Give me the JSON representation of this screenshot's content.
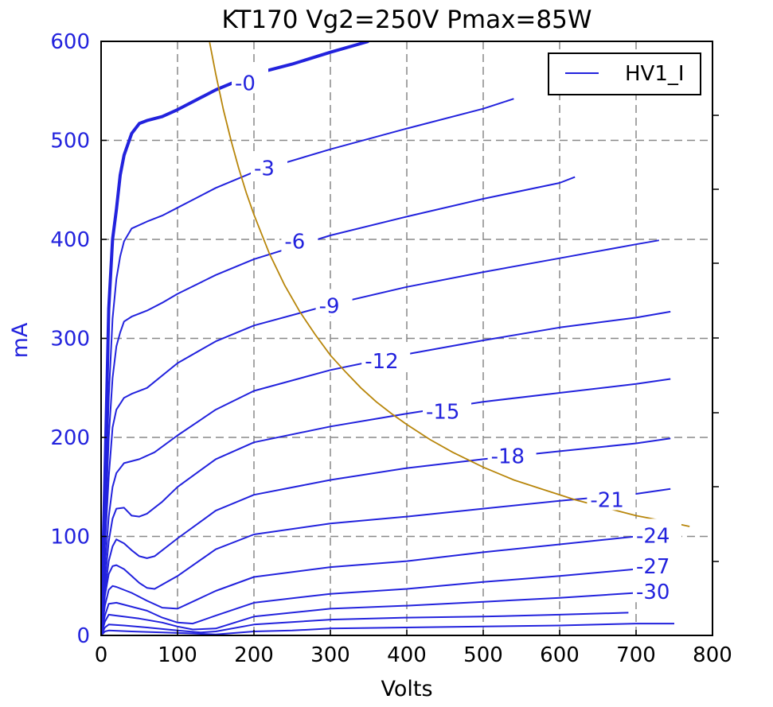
{
  "chart_data": {
    "type": "line",
    "title": "KT170 Vg2=250V Pmax=85W",
    "xlabel": "Volts",
    "ylabel": "mA",
    "xlim": [
      0,
      800
    ],
    "ylim": [
      0,
      600
    ],
    "xticks": [
      "0",
      "100",
      "200",
      "300",
      "400",
      "500",
      "600",
      "700",
      "800"
    ],
    "yticks": [
      "0",
      "100",
      "200",
      "300",
      "400",
      "500",
      "600"
    ],
    "grid": true,
    "legend": {
      "position": "top-right",
      "entries": [
        "HV1_I"
      ]
    },
    "colors": {
      "curves": "#2222dd",
      "pmax": "#b8860b"
    },
    "series": [
      {
        "grid_voltage": "-0",
        "label_at": [
          175,
          558
        ],
        "points": [
          [
            0,
            0
          ],
          [
            5,
            160
          ],
          [
            10,
            330
          ],
          [
            15,
            400
          ],
          [
            20,
            430
          ],
          [
            25,
            465
          ],
          [
            30,
            485
          ],
          [
            40,
            507
          ],
          [
            50,
            517
          ],
          [
            60,
            520
          ],
          [
            80,
            524
          ],
          [
            100,
            531
          ],
          [
            150,
            551
          ],
          [
            200,
            567
          ],
          [
            250,
            577
          ],
          [
            300,
            589
          ],
          [
            350,
            600
          ]
        ]
      },
      {
        "grid_voltage": "-3",
        "label_at": [
          200,
          472
        ],
        "points": [
          [
            0,
            0
          ],
          [
            5,
            120
          ],
          [
            10,
            240
          ],
          [
            15,
            320
          ],
          [
            20,
            360
          ],
          [
            25,
            383
          ],
          [
            30,
            398
          ],
          [
            40,
            411
          ],
          [
            60,
            418
          ],
          [
            80,
            424
          ],
          [
            100,
            432
          ],
          [
            150,
            452
          ],
          [
            200,
            468
          ],
          [
            300,
            491
          ],
          [
            400,
            512
          ],
          [
            500,
            532
          ],
          [
            540,
            542
          ]
        ]
      },
      {
        "grid_voltage": "-6",
        "label_at": [
          240,
          398
        ],
        "points": [
          [
            0,
            0
          ],
          [
            5,
            100
          ],
          [
            10,
            200
          ],
          [
            15,
            260
          ],
          [
            20,
            292
          ],
          [
            25,
            306
          ],
          [
            30,
            317
          ],
          [
            40,
            322
          ],
          [
            60,
            328
          ],
          [
            80,
            336
          ],
          [
            100,
            345
          ],
          [
            150,
            364
          ],
          [
            200,
            380
          ],
          [
            300,
            404
          ],
          [
            400,
            423
          ],
          [
            500,
            441
          ],
          [
            600,
            457
          ],
          [
            620,
            463
          ]
        ]
      },
      {
        "grid_voltage": "-9",
        "label_at": [
          285,
          333
        ],
        "points": [
          [
            0,
            0
          ],
          [
            5,
            90
          ],
          [
            10,
            160
          ],
          [
            15,
            210
          ],
          [
            20,
            228
          ],
          [
            30,
            240
          ],
          [
            40,
            244
          ],
          [
            60,
            250
          ],
          [
            100,
            275
          ],
          [
            150,
            297
          ],
          [
            200,
            313
          ],
          [
            300,
            334
          ],
          [
            400,
            352
          ],
          [
            500,
            367
          ],
          [
            600,
            381
          ],
          [
            700,
            395
          ],
          [
            730,
            399
          ]
        ]
      },
      {
        "grid_voltage": "-12",
        "label_at": [
          345,
          277
        ],
        "points": [
          [
            0,
            0
          ],
          [
            5,
            70
          ],
          [
            10,
            120
          ],
          [
            15,
            150
          ],
          [
            20,
            164
          ],
          [
            30,
            174
          ],
          [
            50,
            178
          ],
          [
            70,
            185
          ],
          [
            100,
            202
          ],
          [
            150,
            228
          ],
          [
            200,
            247
          ],
          [
            300,
            268
          ],
          [
            400,
            284
          ],
          [
            500,
            298
          ],
          [
            600,
            311
          ],
          [
            700,
            321
          ],
          [
            745,
            327
          ]
        ]
      },
      {
        "grid_voltage": "-15",
        "label_at": [
          425,
          226
        ],
        "points": [
          [
            0,
            0
          ],
          [
            5,
            55
          ],
          [
            10,
            95
          ],
          [
            15,
            118
          ],
          [
            20,
            128
          ],
          [
            30,
            129
          ],
          [
            40,
            121
          ],
          [
            50,
            120
          ],
          [
            60,
            123
          ],
          [
            80,
            135
          ],
          [
            100,
            150
          ],
          [
            150,
            178
          ],
          [
            200,
            195
          ],
          [
            300,
            211
          ],
          [
            400,
            224
          ],
          [
            500,
            236
          ],
          [
            600,
            245
          ],
          [
            700,
            254
          ],
          [
            745,
            259
          ]
        ]
      },
      {
        "grid_voltage": "-18",
        "label_at": [
          510,
          181
        ],
        "points": [
          [
            0,
            0
          ],
          [
            5,
            45
          ],
          [
            10,
            75
          ],
          [
            15,
            90
          ],
          [
            20,
            97
          ],
          [
            30,
            93
          ],
          [
            40,
            86
          ],
          [
            50,
            80
          ],
          [
            60,
            78
          ],
          [
            70,
            80
          ],
          [
            100,
            98
          ],
          [
            150,
            126
          ],
          [
            200,
            142
          ],
          [
            300,
            157
          ],
          [
            400,
            169
          ],
          [
            500,
            178
          ],
          [
            600,
            186
          ],
          [
            700,
            194
          ],
          [
            745,
            199
          ]
        ]
      },
      {
        "grid_voltage": "-21",
        "label_at": [
          640,
          137
        ],
        "points": [
          [
            0,
            0
          ],
          [
            5,
            40
          ],
          [
            10,
            62
          ],
          [
            15,
            70
          ],
          [
            20,
            71
          ],
          [
            30,
            67
          ],
          [
            40,
            60
          ],
          [
            50,
            53
          ],
          [
            60,
            48
          ],
          [
            70,
            47
          ],
          [
            100,
            60
          ],
          [
            150,
            87
          ],
          [
            200,
            102
          ],
          [
            300,
            113
          ],
          [
            400,
            120
          ],
          [
            500,
            128
          ],
          [
            600,
            136
          ],
          [
            700,
            143
          ],
          [
            745,
            148
          ]
        ]
      },
      {
        "grid_voltage": "-24",
        "label_at": [
          700,
          101
        ],
        "points": [
          [
            0,
            0
          ],
          [
            5,
            30
          ],
          [
            10,
            46
          ],
          [
            15,
            50
          ],
          [
            20,
            49
          ],
          [
            40,
            43
          ],
          [
            60,
            35
          ],
          [
            80,
            28
          ],
          [
            100,
            27
          ],
          [
            150,
            45
          ],
          [
            200,
            59
          ],
          [
            300,
            69
          ],
          [
            400,
            75
          ],
          [
            500,
            84
          ],
          [
            600,
            92
          ],
          [
            700,
            100
          ],
          [
            720,
            102
          ]
        ]
      },
      {
        "grid_voltage": "-27",
        "label_at": [
          700,
          70
        ],
        "points": [
          [
            0,
            0
          ],
          [
            5,
            20
          ],
          [
            10,
            32
          ],
          [
            20,
            33
          ],
          [
            40,
            29
          ],
          [
            60,
            25
          ],
          [
            80,
            18
          ],
          [
            100,
            13
          ],
          [
            120,
            12
          ],
          [
            150,
            20
          ],
          [
            200,
            33
          ],
          [
            300,
            42
          ],
          [
            400,
            47
          ],
          [
            500,
            54
          ],
          [
            600,
            60
          ],
          [
            700,
            67
          ],
          [
            720,
            70
          ]
        ]
      },
      {
        "grid_voltage": "-30",
        "label_at": [
          700,
          44
        ],
        "points": [
          [
            0,
            0
          ],
          [
            5,
            14
          ],
          [
            10,
            21
          ],
          [
            20,
            20
          ],
          [
            50,
            17
          ],
          [
            80,
            13
          ],
          [
            100,
            9
          ],
          [
            120,
            6
          ],
          [
            150,
            7
          ],
          [
            200,
            19
          ],
          [
            300,
            27
          ],
          [
            400,
            30
          ],
          [
            500,
            34
          ],
          [
            600,
            38
          ],
          [
            700,
            43
          ],
          [
            720,
            44
          ]
        ]
      },
      {
        "grid_voltage": "",
        "points": [
          [
            0,
            0
          ],
          [
            5,
            8
          ],
          [
            10,
            11
          ],
          [
            30,
            10
          ],
          [
            60,
            8
          ],
          [
            100,
            5
          ],
          [
            130,
            3
          ],
          [
            150,
            4
          ],
          [
            200,
            11
          ],
          [
            300,
            16
          ],
          [
            400,
            18
          ],
          [
            500,
            19
          ],
          [
            600,
            21
          ],
          [
            690,
            23
          ]
        ]
      },
      {
        "grid_voltage": "",
        "points": [
          [
            0,
            0
          ],
          [
            5,
            4
          ],
          [
            10,
            5
          ],
          [
            40,
            4
          ],
          [
            80,
            3
          ],
          [
            120,
            2
          ],
          [
            150,
            1
          ],
          [
            200,
            4
          ],
          [
            250,
            5
          ],
          [
            300,
            7
          ],
          [
            400,
            8
          ],
          [
            500,
            9
          ],
          [
            600,
            10
          ],
          [
            700,
            12
          ],
          [
            750,
            12
          ]
        ]
      }
    ],
    "pmax_curve": {
      "label": "Pmax=85W",
      "points": [
        [
          142,
          599
        ],
        [
          150,
          567
        ],
        [
          160,
          531
        ],
        [
          170,
          500
        ],
        [
          180,
          472
        ],
        [
          190,
          447
        ],
        [
          200,
          425
        ],
        [
          220,
          386
        ],
        [
          240,
          354
        ],
        [
          260,
          327
        ],
        [
          280,
          304
        ],
        [
          300,
          283
        ],
        [
          320,
          266
        ],
        [
          340,
          250
        ],
        [
          360,
          236
        ],
        [
          380,
          224
        ],
        [
          400,
          213
        ],
        [
          430,
          198
        ],
        [
          460,
          185
        ],
        [
          500,
          170
        ],
        [
          540,
          157
        ],
        [
          580,
          147
        ],
        [
          620,
          137
        ],
        [
          660,
          129
        ],
        [
          700,
          121
        ],
        [
          740,
          115
        ],
        [
          770,
          110
        ]
      ]
    }
  }
}
